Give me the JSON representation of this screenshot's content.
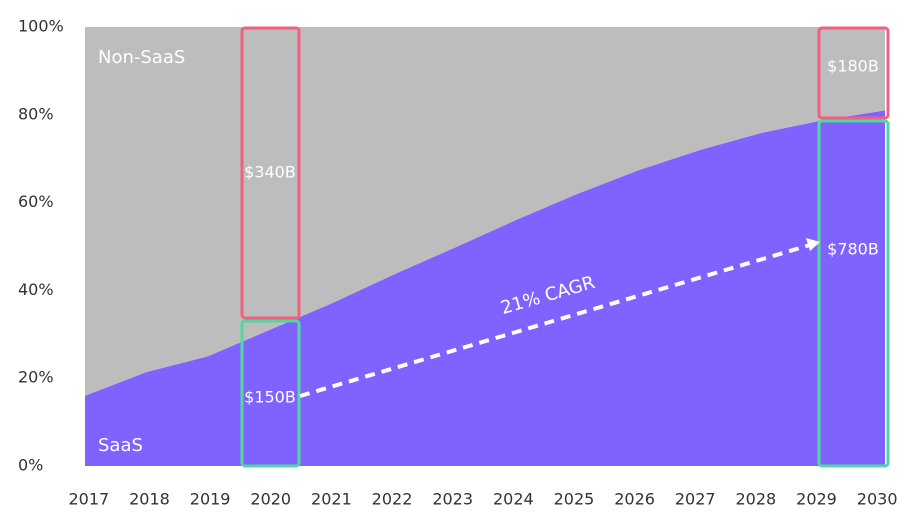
{
  "chart_data": {
    "type": "stacked-area",
    "x": [
      2017,
      2018,
      2019,
      2020,
      2021,
      2022,
      2023,
      2024,
      2025,
      2026,
      2027,
      2028,
      2029,
      2030
    ],
    "series": [
      {
        "name": "SaaS",
        "color": "#7f62ff",
        "values": [
          16,
          21.4,
          25,
          31,
          37,
          43.5,
          49.7,
          56,
          62,
          67.4,
          72,
          75.9,
          78.8,
          81
        ]
      },
      {
        "name": "Non-SaaS",
        "color": "#bdbdbd",
        "values": [
          84,
          78.6,
          75,
          69,
          63,
          56.5,
          50.3,
          44,
          38,
          32.6,
          28,
          24.1,
          21.2,
          19
        ]
      }
    ],
    "ylim": [
      0,
      100
    ],
    "yticks": [
      {
        "value": 0,
        "label": "0%"
      },
      {
        "value": 20,
        "label": "20%"
      },
      {
        "value": 40,
        "label": "40%"
      },
      {
        "value": 60,
        "label": "60%"
      },
      {
        "value": 80,
        "label": "80%"
      },
      {
        "value": 100,
        "label": "100%"
      }
    ],
    "annotations": [
      "$340B",
      "$150B",
      "$180B",
      "$780B",
      "21% CAGR"
    ]
  }
}
